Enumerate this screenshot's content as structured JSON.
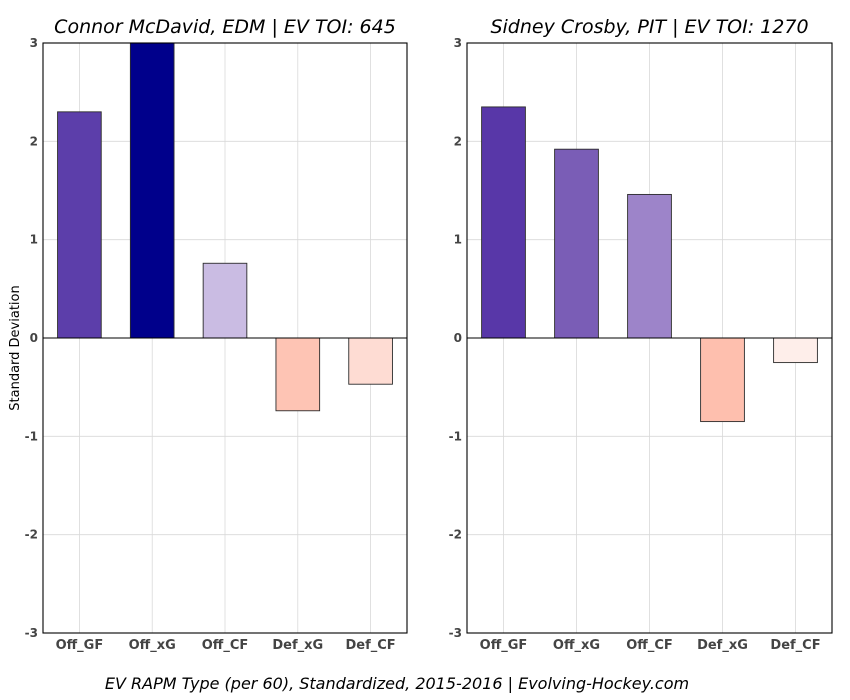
{
  "caption": "EV RAPM Type (per 60), Standardized, 2015-2016    |    Evolving-Hockey.com",
  "chart_data": [
    {
      "type": "bar",
      "title": "Connor McDavid, EDM  |  EV TOI: 645",
      "categories": [
        "Off_GF",
        "Off_xG",
        "Off_CF",
        "Def_xG",
        "Def_CF"
      ],
      "values": [
        2.3,
        3.0,
        0.76,
        -0.74,
        -0.47
      ],
      "colors": [
        "#5c3eaa",
        "#00008b",
        "#cabce3",
        "#fec4b4",
        "#fedcd3"
      ],
      "ylabel": "Standard Deviation",
      "xlabel": "",
      "ylim": [
        -3,
        3
      ],
      "yticks": [
        "-3",
        "-2",
        "-1",
        "0",
        "1",
        "2",
        "3"
      ],
      "grid": true
    },
    {
      "type": "bar",
      "title": "Sidney Crosby, PIT  |  EV TOI: 1270",
      "categories": [
        "Off_GF",
        "Off_xG",
        "Off_CF",
        "Def_xG",
        "Def_CF"
      ],
      "values": [
        2.35,
        1.92,
        1.46,
        -0.85,
        -0.25
      ],
      "colors": [
        "#5837a8",
        "#7a5db6",
        "#9d84c9",
        "#febfae",
        "#feeeea"
      ],
      "ylabel": "",
      "xlabel": "",
      "ylim": [
        -3,
        3
      ],
      "yticks": [
        "-3",
        "-2",
        "-1",
        "0",
        "1",
        "2",
        "3"
      ],
      "grid": true
    }
  ]
}
